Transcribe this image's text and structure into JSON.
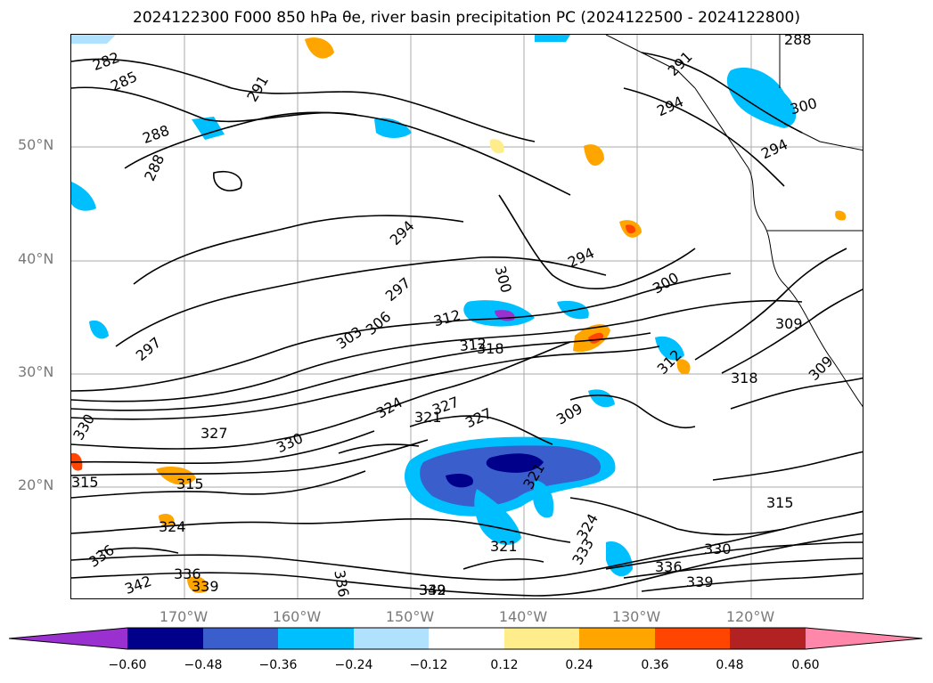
{
  "title": "2024122300 F000 850 hPa θe, river basin precipitation PC (2024122500 - 2024122800)",
  "map": {
    "lat_labels": [
      "50°N",
      "40°N",
      "30°N",
      "20°N"
    ],
    "lon_labels": [
      "170°W",
      "160°W",
      "150°W",
      "140°W",
      "130°W",
      "120°W"
    ],
    "contour_labels": [
      "282",
      "285",
      "288",
      "288",
      "288",
      "291",
      "291",
      "294",
      "294",
      "294",
      "294",
      "297",
      "297",
      "300",
      "300",
      "300",
      "303",
      "306",
      "309",
      "309",
      "309",
      "312",
      "312",
      "312",
      "315",
      "315",
      "315",
      "318",
      "318",
      "321",
      "321",
      "321",
      "324",
      "324",
      "324",
      "327",
      "327",
      "327",
      "330",
      "330",
      "330",
      "333",
      "336",
      "336",
      "336",
      "336",
      "339",
      "339",
      "339",
      "342",
      "342"
    ]
  },
  "colorbar": {
    "tick_labels": [
      "−0.60",
      "−0.48",
      "−0.36",
      "−0.24",
      "−0.12",
      "0.12",
      "0.24",
      "0.36",
      "0.48",
      "0.60"
    ],
    "colors": [
      "#9b30d0",
      "#00008b",
      "#3a5fcd",
      "#00bfff",
      "#b0e2ff",
      "#ffffff",
      "#ffec8b",
      "#ffa500",
      "#ff4500",
      "#b22222",
      "#ff88aa"
    ]
  }
}
